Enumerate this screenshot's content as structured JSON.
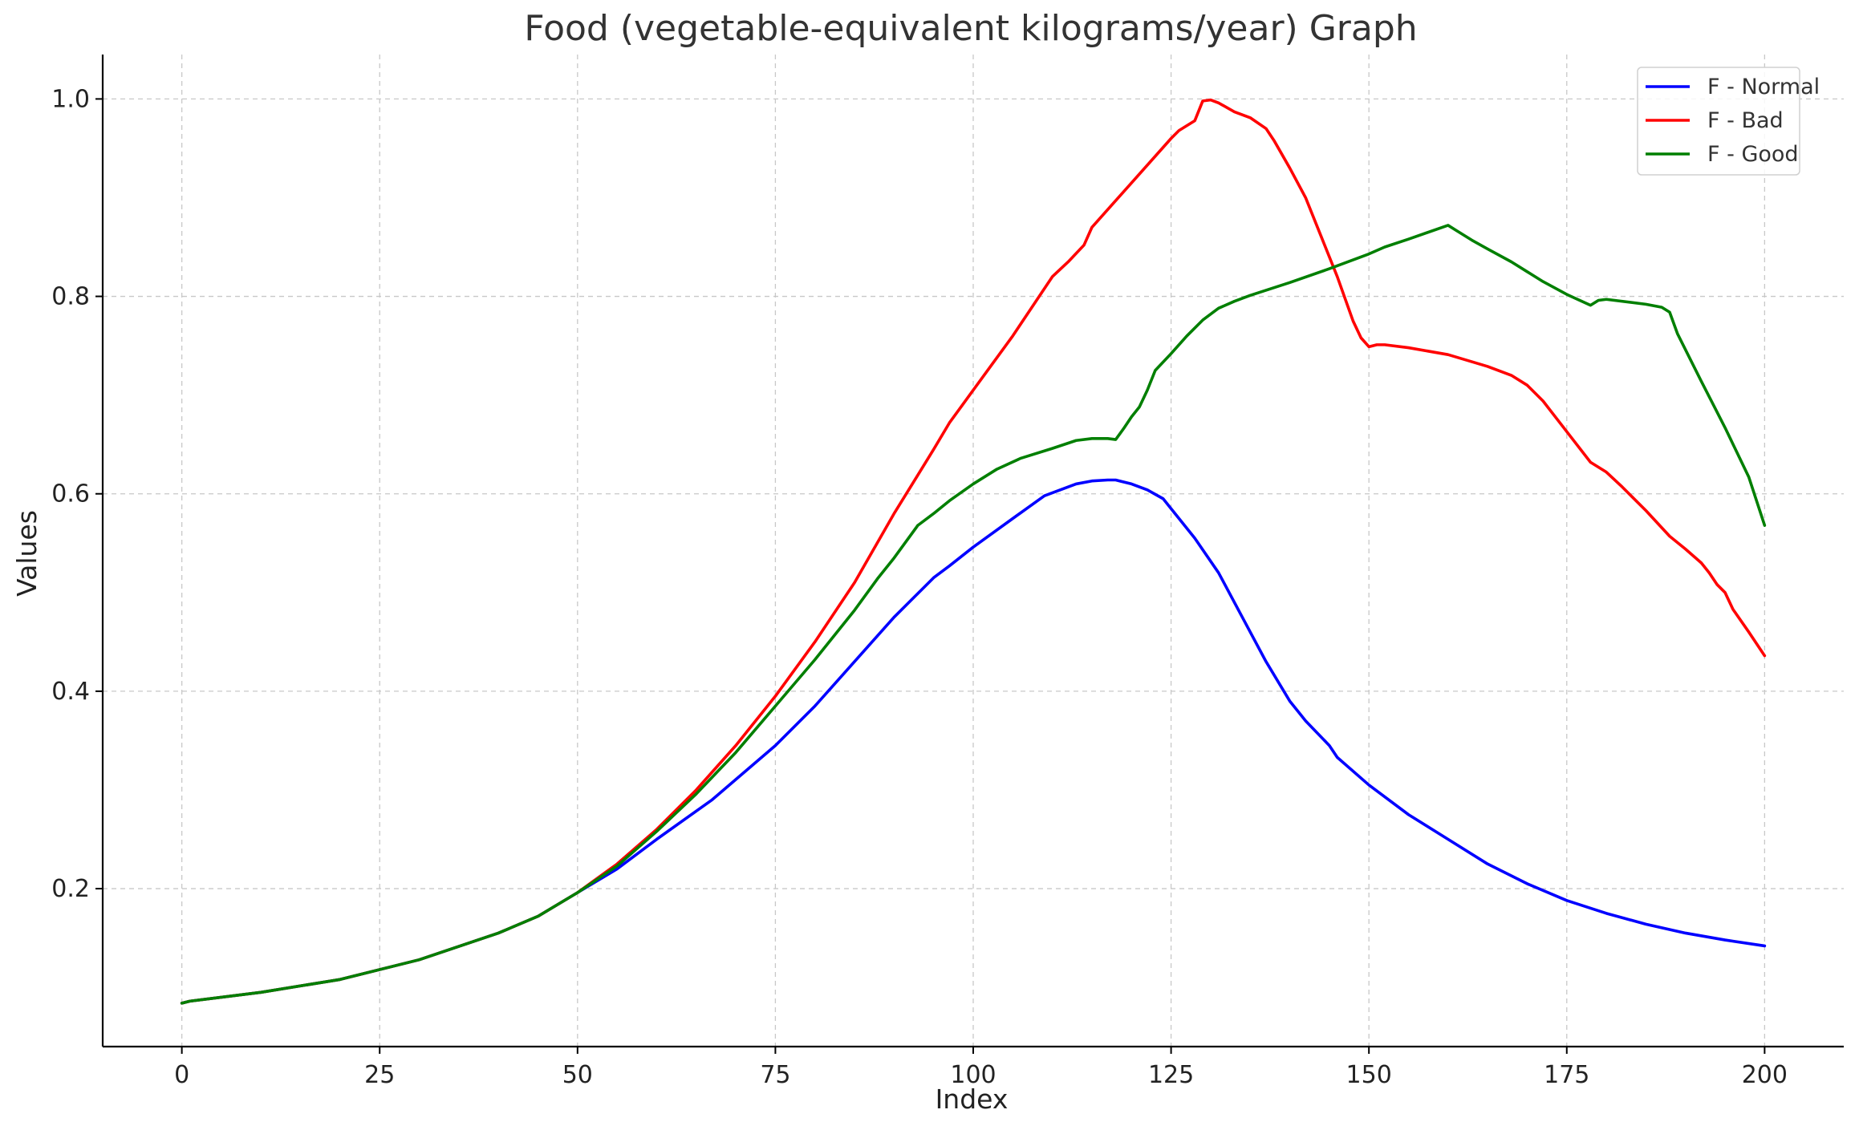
{
  "chart_data": {
    "type": "line",
    "title": "Food (vegetable-equivalent kilograms/year) Graph",
    "xlabel": "Index",
    "ylabel": "Values",
    "xlim": [
      -10,
      210
    ],
    "ylim": [
      0.04,
      1.045
    ],
    "xticks": [
      0,
      25,
      50,
      75,
      100,
      125,
      150,
      175,
      200
    ],
    "yticks": [
      0.2,
      0.4,
      0.6,
      0.8,
      1.0
    ],
    "xtick_labels": [
      "0",
      "25",
      "50",
      "75",
      "100",
      "125",
      "150",
      "175",
      "200"
    ],
    "ytick_labels": [
      "0.2",
      "0.4",
      "0.6",
      "0.8",
      "1.0"
    ],
    "grid": true,
    "legend_position": "top-right",
    "series": [
      {
        "name": "F - Normal",
        "color": "#0000ff",
        "points": [
          [
            0,
            0.084
          ],
          [
            1,
            0.086
          ],
          [
            10,
            0.095
          ],
          [
            20,
            0.108
          ],
          [
            30,
            0.128
          ],
          [
            40,
            0.155
          ],
          [
            45,
            0.172
          ],
          [
            50,
            0.196
          ],
          [
            55,
            0.22
          ],
          [
            60,
            0.25
          ],
          [
            67,
            0.29
          ],
          [
            75,
            0.345
          ],
          [
            80,
            0.385
          ],
          [
            85,
            0.43
          ],
          [
            90,
            0.475
          ],
          [
            95,
            0.515
          ],
          [
            97,
            0.527
          ],
          [
            100,
            0.546
          ],
          [
            105,
            0.575
          ],
          [
            109,
            0.598
          ],
          [
            113,
            0.61
          ],
          [
            115,
            0.613
          ],
          [
            117,
            0.614
          ],
          [
            118,
            0.614
          ],
          [
            120,
            0.61
          ],
          [
            122,
            0.604
          ],
          [
            124,
            0.595
          ],
          [
            125,
            0.585
          ],
          [
            128,
            0.555
          ],
          [
            131,
            0.52
          ],
          [
            134,
            0.475
          ],
          [
            137,
            0.43
          ],
          [
            140,
            0.39
          ],
          [
            142,
            0.37
          ],
          [
            145,
            0.345
          ],
          [
            146,
            0.333
          ],
          [
            150,
            0.305
          ],
          [
            155,
            0.275
          ],
          [
            160,
            0.25
          ],
          [
            165,
            0.225
          ],
          [
            170,
            0.205
          ],
          [
            175,
            0.188
          ],
          [
            180,
            0.175
          ],
          [
            185,
            0.164
          ],
          [
            190,
            0.155
          ],
          [
            195,
            0.148
          ],
          [
            200,
            0.142
          ]
        ]
      },
      {
        "name": "F - Bad",
        "color": "#ff0000",
        "points": [
          [
            0,
            0.084
          ],
          [
            1,
            0.086
          ],
          [
            10,
            0.095
          ],
          [
            20,
            0.108
          ],
          [
            30,
            0.128
          ],
          [
            40,
            0.155
          ],
          [
            45,
            0.172
          ],
          [
            50,
            0.196
          ],
          [
            55,
            0.225
          ],
          [
            60,
            0.26
          ],
          [
            65,
            0.3
          ],
          [
            70,
            0.345
          ],
          [
            75,
            0.395
          ],
          [
            80,
            0.45
          ],
          [
            85,
            0.51
          ],
          [
            90,
            0.58
          ],
          [
            95,
            0.645
          ],
          [
            97,
            0.672
          ],
          [
            100,
            0.705
          ],
          [
            105,
            0.76
          ],
          [
            110,
            0.82
          ],
          [
            112,
            0.835
          ],
          [
            114,
            0.852
          ],
          [
            115,
            0.87
          ],
          [
            120,
            0.915
          ],
          [
            125,
            0.96
          ],
          [
            126,
            0.968
          ],
          [
            128,
            0.978
          ],
          [
            129,
            0.998
          ],
          [
            130,
            0.999
          ],
          [
            131,
            0.996
          ],
          [
            133,
            0.987
          ],
          [
            135,
            0.981
          ],
          [
            137,
            0.97
          ],
          [
            138,
            0.958
          ],
          [
            140,
            0.93
          ],
          [
            142,
            0.9
          ],
          [
            144,
            0.86
          ],
          [
            146,
            0.82
          ],
          [
            148,
            0.775
          ],
          [
            149,
            0.758
          ],
          [
            150,
            0.749
          ],
          [
            151,
            0.751
          ],
          [
            152,
            0.751
          ],
          [
            155,
            0.748
          ],
          [
            160,
            0.741
          ],
          [
            165,
            0.729
          ],
          [
            168,
            0.72
          ],
          [
            170,
            0.71
          ],
          [
            172,
            0.694
          ],
          [
            175,
            0.663
          ],
          [
            178,
            0.632
          ],
          [
            180,
            0.622
          ],
          [
            182,
            0.607
          ],
          [
            185,
            0.583
          ],
          [
            188,
            0.557
          ],
          [
            190,
            0.544
          ],
          [
            192,
            0.53
          ],
          [
            193,
            0.52
          ],
          [
            194,
            0.508
          ],
          [
            195,
            0.5
          ],
          [
            196,
            0.483
          ],
          [
            198,
            0.46
          ],
          [
            200,
            0.436
          ]
        ]
      },
      {
        "name": "F - Good",
        "color": "#007f00",
        "points": [
          [
            0,
            0.084
          ],
          [
            1,
            0.086
          ],
          [
            10,
            0.095
          ],
          [
            20,
            0.108
          ],
          [
            30,
            0.128
          ],
          [
            40,
            0.155
          ],
          [
            45,
            0.172
          ],
          [
            50,
            0.196
          ],
          [
            55,
            0.223
          ],
          [
            60,
            0.258
          ],
          [
            65,
            0.296
          ],
          [
            70,
            0.338
          ],
          [
            75,
            0.385
          ],
          [
            80,
            0.432
          ],
          [
            85,
            0.482
          ],
          [
            88,
            0.515
          ],
          [
            90,
            0.535
          ],
          [
            93,
            0.568
          ],
          [
            95,
            0.58
          ],
          [
            97,
            0.593
          ],
          [
            100,
            0.61
          ],
          [
            103,
            0.625
          ],
          [
            106,
            0.636
          ],
          [
            110,
            0.646
          ],
          [
            113,
            0.654
          ],
          [
            115,
            0.656
          ],
          [
            117,
            0.656
          ],
          [
            118,
            0.655
          ],
          [
            119,
            0.666
          ],
          [
            120,
            0.678
          ],
          [
            121,
            0.688
          ],
          [
            122,
            0.705
          ],
          [
            123,
            0.725
          ],
          [
            125,
            0.742
          ],
          [
            127,
            0.76
          ],
          [
            129,
            0.776
          ],
          [
            131,
            0.788
          ],
          [
            133,
            0.795
          ],
          [
            135,
            0.801
          ],
          [
            140,
            0.814
          ],
          [
            145,
            0.828
          ],
          [
            150,
            0.843
          ],
          [
            152,
            0.85
          ],
          [
            155,
            0.858
          ],
          [
            160,
            0.872
          ],
          [
            161,
            0.867
          ],
          [
            163,
            0.857
          ],
          [
            165,
            0.848
          ],
          [
            168,
            0.835
          ],
          [
            170,
            0.825
          ],
          [
            172,
            0.815
          ],
          [
            175,
            0.802
          ],
          [
            178,
            0.791
          ],
          [
            179,
            0.796
          ],
          [
            180,
            0.797
          ],
          [
            185,
            0.792
          ],
          [
            187,
            0.789
          ],
          [
            188,
            0.784
          ],
          [
            189,
            0.762
          ],
          [
            192,
            0.714
          ],
          [
            195,
            0.667
          ],
          [
            198,
            0.617
          ],
          [
            200,
            0.568
          ]
        ]
      }
    ]
  }
}
